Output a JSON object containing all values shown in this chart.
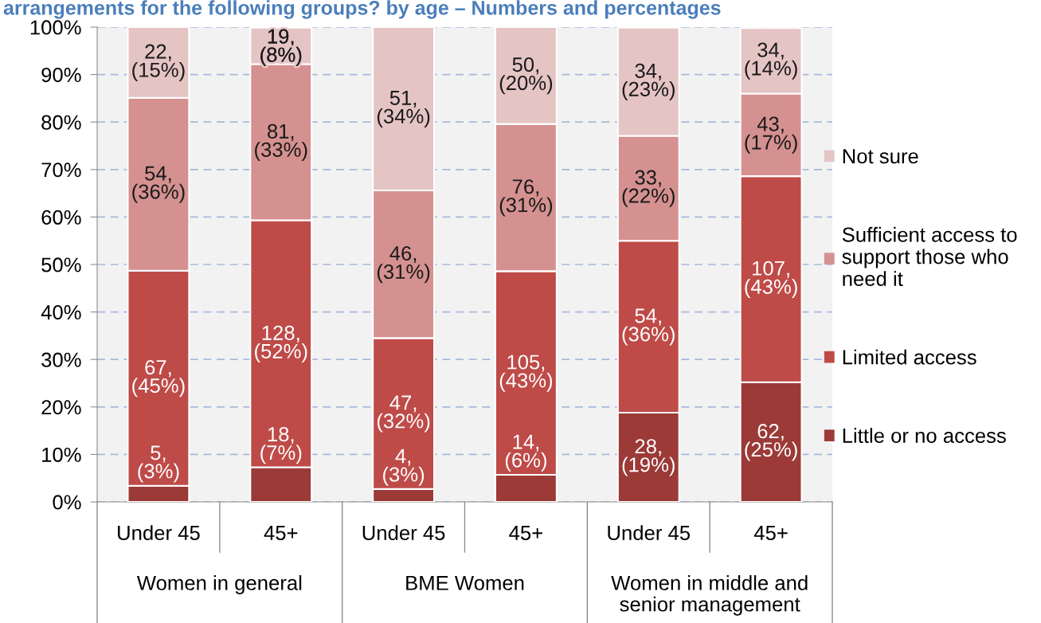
{
  "chart_data": {
    "type": "bar",
    "title": "arrangements for the following groups? by age – Numbers and percentages",
    "categories": [
      "Under 45",
      "45+",
      "Under 45",
      "45+",
      "Under 45",
      "45+"
    ],
    "annotations": [
      "Women in general",
      "BME Women",
      "Women in middle and senior management"
    ],
    "stacked": true,
    "series": [
      {
        "name": "Little or no access",
        "color": "#9b3a37",
        "values": [
          3.4,
          7.3,
          2.7,
          5.7,
          18.8,
          25.2
        ],
        "value_labels": [
          "5, (3%)",
          "18, (7%)",
          "4, (3%)",
          "14, (6%)",
          "28, (19%)",
          "62, (25%)"
        ]
      },
      {
        "name": "Limited access",
        "color": "#be4b48",
        "values": [
          45.3,
          52.0,
          31.8,
          42.9,
          36.2,
          43.4
        ],
        "value_labels": [
          "67, (45%)",
          "128, (52%)",
          "47, (32%)",
          "105, (43%)",
          "54, (36%)",
          "107, (43%)"
        ]
      },
      {
        "name": "Sufficient access to support those who need it",
        "color": "#d49190",
        "values": [
          36.4,
          32.9,
          31.1,
          31.0,
          22.1,
          17.4
        ],
        "value_labels": [
          "54, (36%)",
          "81, (33%)",
          "46, (31%)",
          "76, (31%)",
          "33, (22%)",
          "43, (17%)"
        ]
      },
      {
        "name": "Not sure",
        "color": "#e5c4c4",
        "values": [
          14.9,
          7.7,
          34.4,
          20.4,
          22.8,
          13.8
        ],
        "value_labels": [
          "22, (15%)",
          "19, (8%)",
          "51, (34%)",
          "50, (20%)",
          "34, (23%)",
          "34, (14%)"
        ]
      }
    ],
    "ylim": [
      0,
      100
    ],
    "yticks": [
      {
        "value": 0,
        "label": "0%"
      },
      {
        "value": 10,
        "label": "10%"
      },
      {
        "value": 20,
        "label": "20%"
      },
      {
        "value": 30,
        "label": "30%"
      },
      {
        "value": 40,
        "label": "40%"
      },
      {
        "value": 50,
        "label": "50%"
      },
      {
        "value": 60,
        "label": "60%"
      },
      {
        "value": 70,
        "label": "70%"
      },
      {
        "value": 80,
        "label": "80%"
      },
      {
        "value": 90,
        "label": "90%"
      },
      {
        "value": 100,
        "label": "100%"
      }
    ],
    "grid": "y",
    "legend": "right"
  }
}
